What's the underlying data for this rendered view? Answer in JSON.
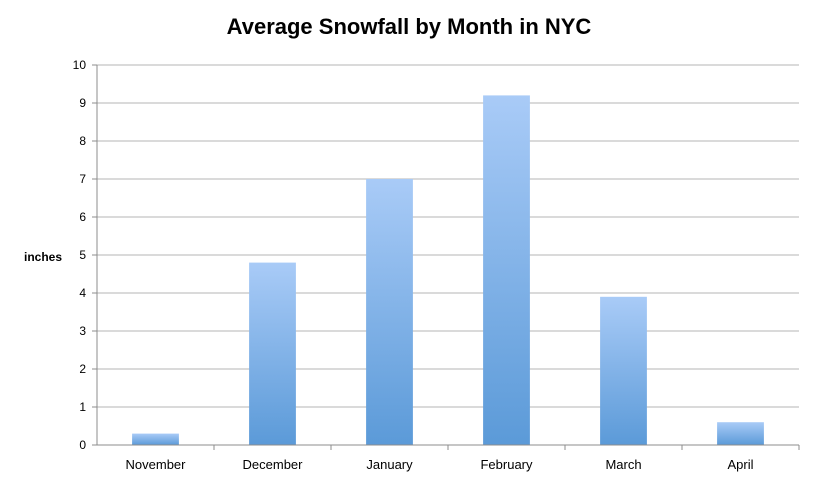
{
  "chart_data": {
    "type": "bar",
    "title": "Average Snowfall by Month in NYC",
    "ylabel": "inches",
    "xlabel": "",
    "categories": [
      "November",
      "December",
      "January",
      "February",
      "March",
      "April"
    ],
    "values": [
      0.3,
      4.8,
      7.0,
      9.2,
      3.9,
      0.6
    ],
    "ylim": [
      0,
      10
    ],
    "yticks": [
      0,
      1,
      2,
      3,
      4,
      5,
      6,
      7,
      8,
      9,
      10
    ],
    "grid": true,
    "legend": "none",
    "colors": {
      "bar_top": "#a9cbf7",
      "bar_bottom": "#5b9ad8",
      "grid": "#b4b4b4",
      "axis": "#8c8c8c"
    }
  }
}
